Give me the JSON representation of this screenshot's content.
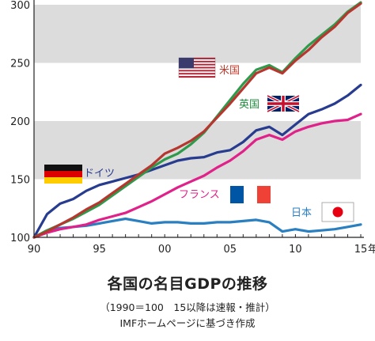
{
  "chart_data": {
    "type": "line",
    "title": "各国の名目GDPの推移",
    "subtitle_lines": [
      "（1990＝100　15以降は速報・推計）",
      "IMFホームページに基づき作成"
    ],
    "x": [
      1990,
      1991,
      1992,
      1993,
      1994,
      1995,
      1996,
      1997,
      1998,
      1999,
      2000,
      2001,
      2002,
      2003,
      2004,
      2005,
      2006,
      2007,
      2008,
      2009,
      2010,
      2011,
      2012,
      2013,
      2014,
      2015
    ],
    "xlim": [
      1990,
      2015
    ],
    "ylim": [
      100,
      300
    ],
    "yticks": [
      100,
      150,
      200,
      250,
      300
    ],
    "ytick_labels": [
      "100",
      "150",
      "200",
      "250",
      "300"
    ],
    "xticks": [
      1990,
      1995,
      2000,
      2005,
      2010,
      2015
    ],
    "xtick_labels": [
      "90",
      "95",
      "00",
      "05",
      "10",
      "15"
    ],
    "x_unit": "年",
    "grid": "alternating horizontal bands",
    "band_color": "#dcdcdc",
    "series": [
      {
        "name": "米国",
        "color": "#b5372f",
        "label_color": "#c0392b",
        "flag": "us-flag-icon",
        "values": [
          100,
          105,
          111,
          117,
          124,
          130,
          138,
          146,
          154,
          162,
          172,
          177,
          183,
          191,
          203,
          215,
          228,
          241,
          246,
          241,
          252,
          261,
          272,
          281,
          293,
          301
        ]
      },
      {
        "name": "英国",
        "color": "#2e9a4b",
        "label_color": "#1e8a3e",
        "flag": "uk-flag-icon",
        "values": [
          100,
          106,
          111,
          116,
          122,
          128,
          136,
          144,
          152,
          160,
          167,
          172,
          180,
          190,
          204,
          218,
          232,
          244,
          248,
          242,
          254,
          265,
          274,
          283,
          294,
          302
        ]
      },
      {
        "name": "ドイツ",
        "color": "#273b8f",
        "label_color": "#273b8f",
        "flag": "german-flag-icon",
        "values": [
          100,
          120,
          129,
          133,
          140,
          145,
          148,
          151,
          154,
          158,
          162,
          166,
          168,
          169,
          173,
          175,
          182,
          192,
          195,
          188,
          197,
          206,
          210,
          215,
          222,
          231
        ]
      },
      {
        "name": "フランス",
        "color": "#e0218a",
        "label_color": "#e0218a",
        "flag": "french-flag-icon",
        "values": [
          100,
          104,
          107,
          109,
          111,
          115,
          118,
          121,
          126,
          131,
          137,
          143,
          148,
          153,
          160,
          166,
          174,
          184,
          188,
          184,
          191,
          195,
          198,
          200,
          201,
          206
        ]
      },
      {
        "name": "日本",
        "color": "#2a7fc1",
        "label_color": "#2a7fc1",
        "flag": "japan-flag-icon",
        "values": [
          100,
          106,
          108,
          109,
          110,
          112,
          114,
          116,
          114,
          112,
          113,
          113,
          112,
          112,
          113,
          113,
          114,
          115,
          113,
          105,
          107,
          105,
          106,
          107,
          109,
          111
        ]
      }
    ]
  }
}
